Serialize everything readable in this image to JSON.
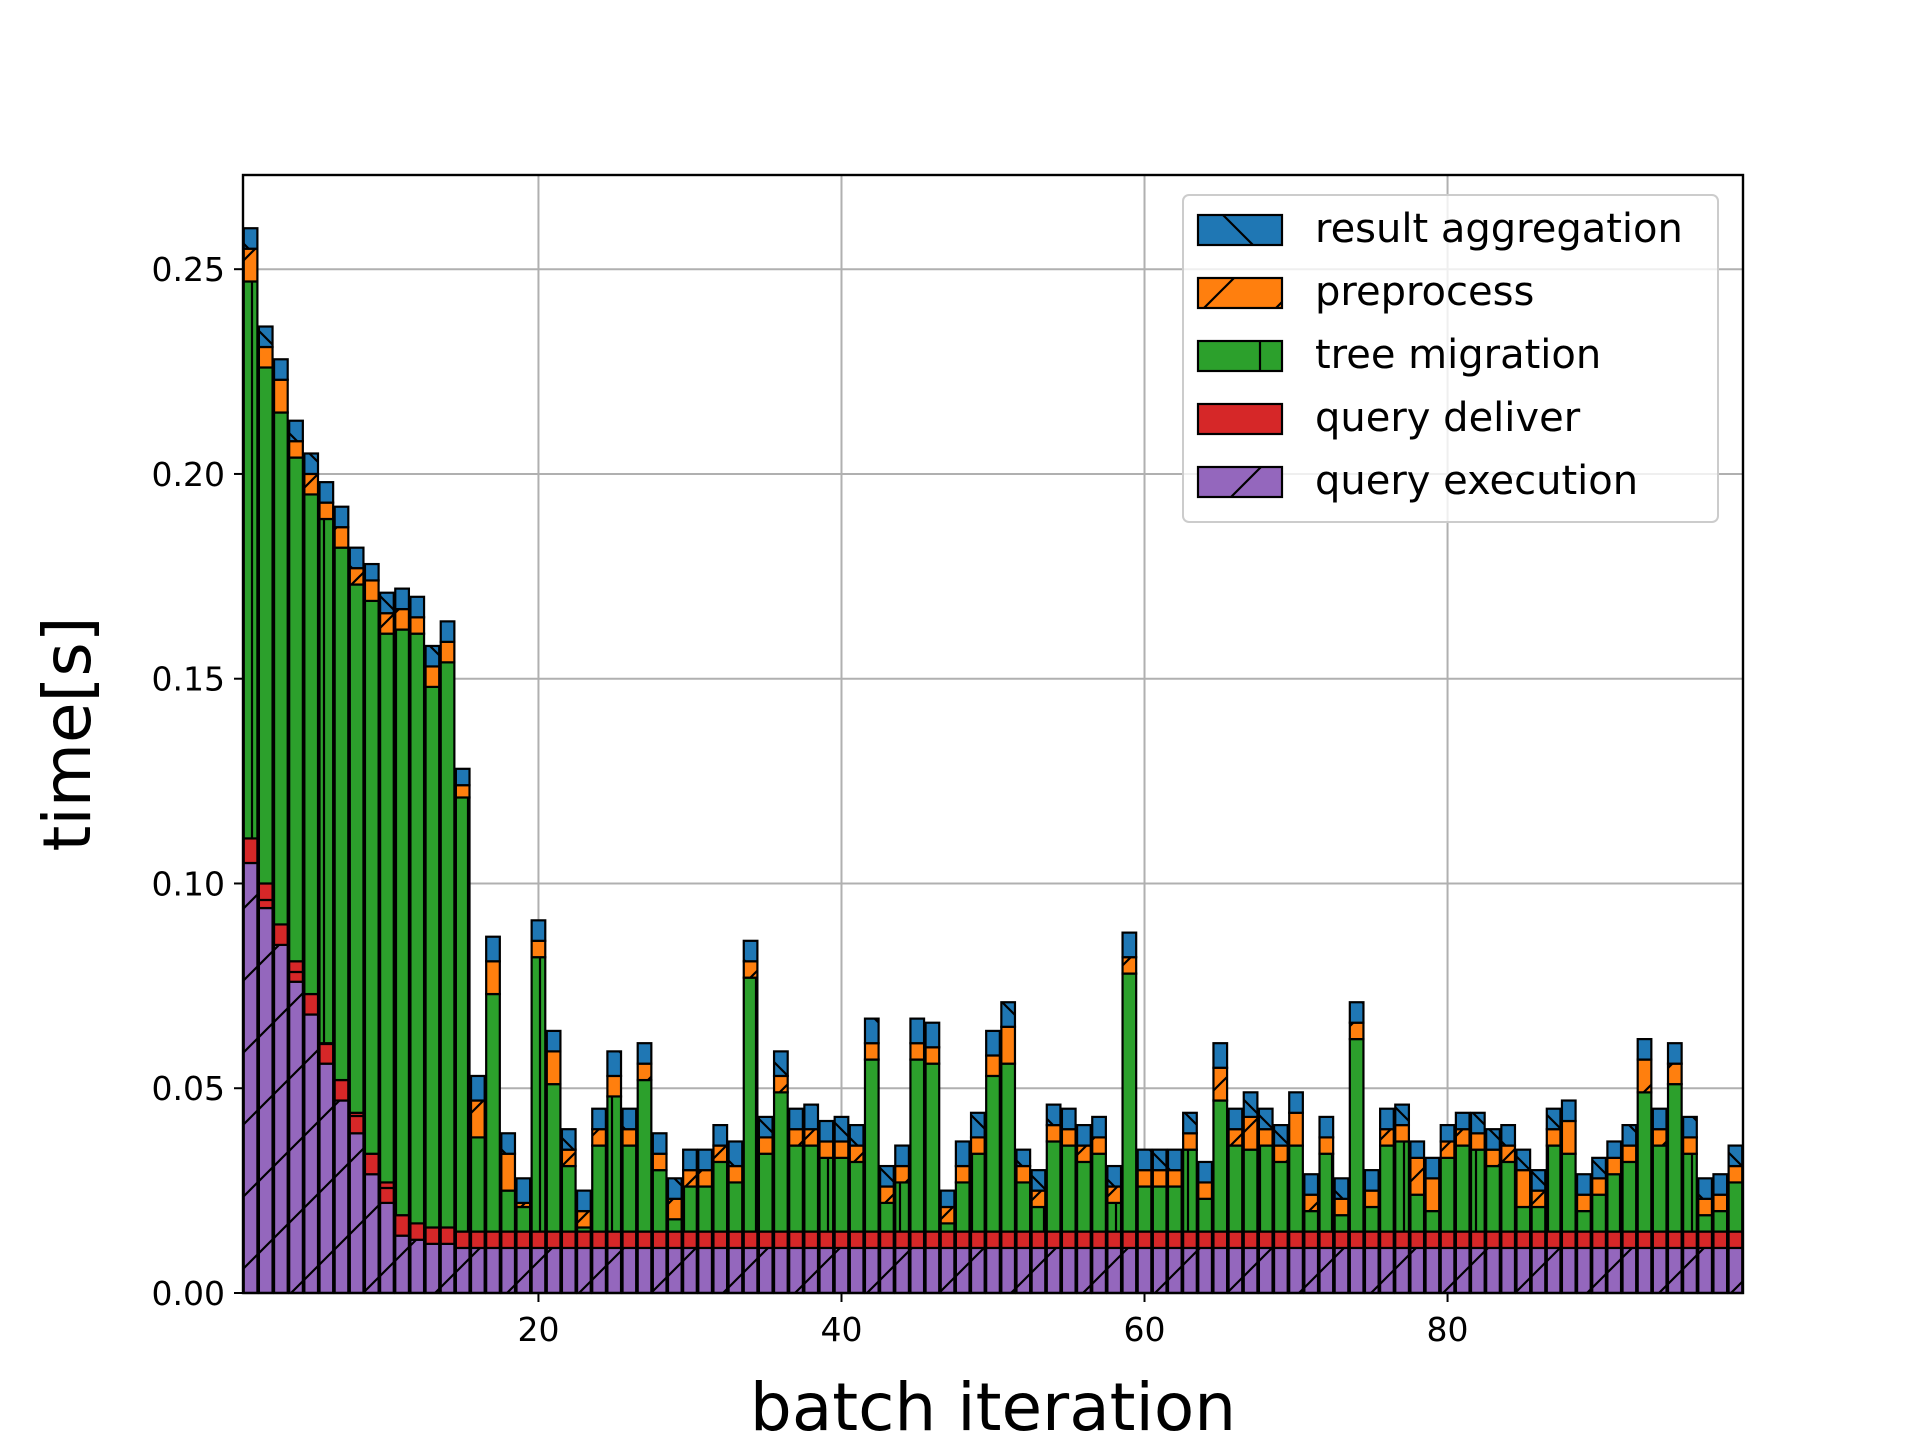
{
  "chart_data": {
    "type": "bar",
    "stacked": true,
    "xlabel": "batch iteration",
    "ylabel": "time[s]",
    "xlim": [
      0.5,
      99.5
    ],
    "ylim": [
      0,
      0.273
    ],
    "xticks": [
      20,
      40,
      60,
      80
    ],
    "yticks": [
      0.0,
      0.05,
      0.1,
      0.15,
      0.2,
      0.25
    ],
    "xtick_labels": [
      "20",
      "40",
      "60",
      "80"
    ],
    "ytick_labels": [
      "0.00",
      "0.05",
      "0.10",
      "0.15",
      "0.20",
      "0.25"
    ],
    "grid": true,
    "legend_position": "top-right",
    "x": [
      1,
      2,
      3,
      4,
      5,
      6,
      7,
      8,
      9,
      10,
      11,
      12,
      13,
      14,
      15,
      16,
      17,
      18,
      19,
      20,
      21,
      22,
      23,
      24,
      25,
      26,
      27,
      28,
      29,
      30,
      31,
      32,
      33,
      34,
      35,
      36,
      37,
      38,
      39,
      40,
      41,
      42,
      43,
      44,
      45,
      46,
      47,
      48,
      49,
      50,
      51,
      52,
      53,
      54,
      55,
      56,
      57,
      58,
      59,
      60,
      61,
      62,
      63,
      64,
      65,
      66,
      67,
      68,
      69,
      70,
      71,
      72,
      73,
      74,
      75,
      76,
      77,
      78,
      79,
      80,
      81,
      82,
      83,
      84,
      85,
      86,
      87,
      88,
      89,
      90,
      91,
      92,
      93,
      94,
      95,
      96,
      97,
      98,
      99
    ],
    "series": [
      {
        "name": "query execution",
        "color": "#9467bd",
        "hatch": "/",
        "values": [
          0.105,
          0.094,
          0.085,
          0.076,
          0.068,
          0.056,
          0.047,
          0.039,
          0.029,
          0.022,
          0.014,
          0.013,
          0.012,
          0.012,
          0.011,
          0.011,
          0.011,
          0.011,
          0.011,
          0.011,
          0.011,
          0.011,
          0.011,
          0.011,
          0.011,
          0.011,
          0.011,
          0.011,
          0.011,
          0.011,
          0.011,
          0.011,
          0.011,
          0.011,
          0.011,
          0.011,
          0.011,
          0.011,
          0.011,
          0.011,
          0.011,
          0.011,
          0.011,
          0.011,
          0.011,
          0.011,
          0.011,
          0.011,
          0.011,
          0.011,
          0.011,
          0.011,
          0.011,
          0.011,
          0.011,
          0.011,
          0.011,
          0.011,
          0.011,
          0.011,
          0.011,
          0.011,
          0.011,
          0.011,
          0.011,
          0.011,
          0.011,
          0.011,
          0.011,
          0.011,
          0.011,
          0.011,
          0.011,
          0.011,
          0.011,
          0.011,
          0.011,
          0.011,
          0.011,
          0.011,
          0.011,
          0.011,
          0.011,
          0.011,
          0.011,
          0.011,
          0.011,
          0.011,
          0.011,
          0.011,
          0.011,
          0.011,
          0.011,
          0.011,
          0.011,
          0.011,
          0.011,
          0.011,
          0.011
        ]
      },
      {
        "name": "query deliver",
        "color": "#d62728",
        "hatch": "-",
        "values": [
          0.006,
          0.006,
          0.005,
          0.005,
          0.005,
          0.005,
          0.005,
          0.005,
          0.005,
          0.005,
          0.005,
          0.004,
          0.004,
          0.004,
          0.004,
          0.004,
          0.004,
          0.004,
          0.004,
          0.004,
          0.004,
          0.004,
          0.004,
          0.004,
          0.004,
          0.004,
          0.004,
          0.004,
          0.004,
          0.004,
          0.004,
          0.004,
          0.004,
          0.004,
          0.004,
          0.004,
          0.004,
          0.004,
          0.004,
          0.004,
          0.004,
          0.004,
          0.004,
          0.004,
          0.004,
          0.004,
          0.004,
          0.004,
          0.004,
          0.004,
          0.004,
          0.004,
          0.004,
          0.004,
          0.004,
          0.004,
          0.004,
          0.004,
          0.004,
          0.004,
          0.004,
          0.004,
          0.004,
          0.004,
          0.004,
          0.004,
          0.004,
          0.004,
          0.004,
          0.004,
          0.004,
          0.004,
          0.004,
          0.004,
          0.004,
          0.004,
          0.004,
          0.004,
          0.004,
          0.004,
          0.004,
          0.004,
          0.004,
          0.004,
          0.004,
          0.004,
          0.004,
          0.004,
          0.004,
          0.004,
          0.004,
          0.004,
          0.004,
          0.004,
          0.004,
          0.004,
          0.004,
          0.004,
          0.004
        ]
      },
      {
        "name": "tree migration",
        "color": "#2ca02c",
        "hatch": "|",
        "values": [
          0.136,
          0.126,
          0.125,
          0.123,
          0.122,
          0.128,
          0.13,
          0.129,
          0.135,
          0.134,
          0.143,
          0.144,
          0.132,
          0.138,
          0.106,
          0.023,
          0.058,
          0.01,
          0.006,
          0.067,
          0.036,
          0.016,
          0.001,
          0.021,
          0.033,
          0.021,
          0.037,
          0.015,
          0.003,
          0.011,
          0.011,
          0.017,
          0.012,
          0.062,
          0.019,
          0.034,
          0.021,
          0.021,
          0.018,
          0.018,
          0.017,
          0.042,
          0.007,
          0.012,
          0.042,
          0.041,
          0.002,
          0.012,
          0.019,
          0.038,
          0.041,
          0.012,
          0.006,
          0.022,
          0.021,
          0.017,
          0.019,
          0.007,
          0.063,
          0.011,
          0.011,
          0.011,
          0.02,
          0.008,
          0.032,
          0.021,
          0.02,
          0.021,
          0.017,
          0.021,
          0.005,
          0.019,
          0.004,
          0.047,
          0.006,
          0.021,
          0.022,
          0.009,
          0.005,
          0.018,
          0.021,
          0.02,
          0.016,
          0.017,
          0.006,
          0.006,
          0.021,
          0.019,
          0.005,
          0.009,
          0.014,
          0.017,
          0.034,
          0.021,
          0.036,
          0.019,
          0.004,
          0.005,
          0.012
        ]
      },
      {
        "name": "preprocess",
        "color": "#ff7f0e",
        "hatch": "/",
        "values": [
          0.008,
          0.005,
          0.008,
          0.004,
          0.005,
          0.004,
          0.005,
          0.004,
          0.005,
          0.005,
          0.005,
          0.004,
          0.005,
          0.005,
          0.003,
          0.009,
          0.008,
          0.009,
          0.001,
          0.004,
          0.008,
          0.004,
          0.004,
          0.004,
          0.005,
          0.004,
          0.004,
          0.004,
          0.005,
          0.004,
          0.004,
          0.004,
          0.004,
          0.004,
          0.004,
          0.004,
          0.004,
          0.004,
          0.004,
          0.004,
          0.004,
          0.004,
          0.004,
          0.004,
          0.004,
          0.004,
          0.004,
          0.004,
          0.004,
          0.005,
          0.009,
          0.004,
          0.004,
          0.004,
          0.004,
          0.004,
          0.004,
          0.004,
          0.004,
          0.004,
          0.004,
          0.004,
          0.004,
          0.004,
          0.008,
          0.004,
          0.008,
          0.004,
          0.004,
          0.008,
          0.004,
          0.004,
          0.004,
          0.004,
          0.004,
          0.004,
          0.004,
          0.009,
          0.008,
          0.004,
          0.004,
          0.004,
          0.004,
          0.004,
          0.009,
          0.004,
          0.004,
          0.008,
          0.004,
          0.004,
          0.004,
          0.004,
          0.008,
          0.004,
          0.005,
          0.004,
          0.004,
          0.004,
          0.004
        ]
      },
      {
        "name": "result aggregation",
        "color": "#1f77b4",
        "hatch": "\\",
        "values": [
          0.005,
          0.005,
          0.005,
          0.005,
          0.005,
          0.005,
          0.005,
          0.005,
          0.004,
          0.005,
          0.005,
          0.005,
          0.005,
          0.005,
          0.004,
          0.006,
          0.006,
          0.005,
          0.006,
          0.005,
          0.005,
          0.005,
          0.005,
          0.005,
          0.006,
          0.005,
          0.005,
          0.005,
          0.005,
          0.005,
          0.005,
          0.005,
          0.006,
          0.005,
          0.005,
          0.006,
          0.005,
          0.006,
          0.005,
          0.006,
          0.005,
          0.006,
          0.005,
          0.005,
          0.006,
          0.006,
          0.004,
          0.006,
          0.006,
          0.006,
          0.006,
          0.004,
          0.005,
          0.005,
          0.005,
          0.005,
          0.005,
          0.005,
          0.006,
          0.005,
          0.005,
          0.005,
          0.005,
          0.005,
          0.006,
          0.005,
          0.006,
          0.005,
          0.005,
          0.005,
          0.005,
          0.005,
          0.005,
          0.005,
          0.005,
          0.005,
          0.005,
          0.004,
          0.005,
          0.004,
          0.004,
          0.005,
          0.005,
          0.005,
          0.005,
          0.005,
          0.005,
          0.005,
          0.005,
          0.005,
          0.004,
          0.005,
          0.005,
          0.005,
          0.005,
          0.005,
          0.005,
          0.005,
          0.005
        ]
      }
    ]
  }
}
